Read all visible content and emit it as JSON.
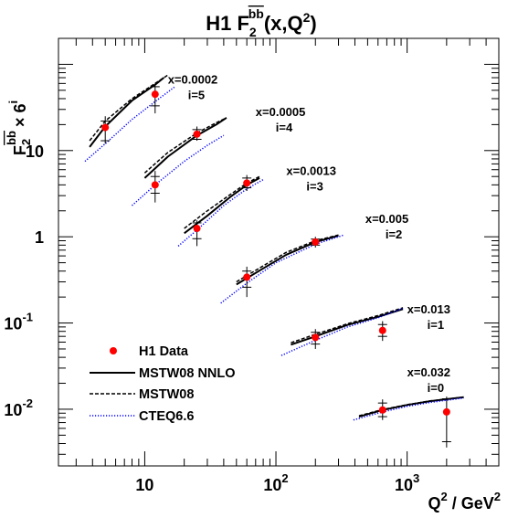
{
  "chart_data": {
    "type": "scatter",
    "title": "H1 F2bb(x,Q2)",
    "title_parts": {
      "main": "H1 F",
      "sub": "2",
      "sup": "bb",
      "args": "(x,Q",
      "arg_sup": "2",
      "close": ")"
    },
    "xlabel": "Q2 / GeV2",
    "xlabel_parts": {
      "q": "Q",
      "q_sup": "2",
      "unit": " / GeV",
      "unit_sup": "2"
    },
    "ylabel": "F2bb × 6i",
    "ylabel_parts": {
      "f": "F",
      "sub": "2",
      "sup": "bb",
      "times": "× 6",
      "exp": "i"
    },
    "x_scale": "log",
    "y_scale": "log",
    "xlim": [
      2.2,
      5000
    ],
    "ylim": [
      0.0022,
      200
    ],
    "x_ticks": [
      {
        "value": 10,
        "base": "10",
        "exp": ""
      },
      {
        "value": 100,
        "base": "10",
        "exp": "2"
      },
      {
        "value": 1000,
        "base": "10",
        "exp": "3"
      }
    ],
    "y_ticks": [
      {
        "value": 0.01,
        "base": "10",
        "exp": "-2"
      },
      {
        "value": 0.1,
        "base": "10",
        "exp": "-1"
      },
      {
        "value": 1,
        "base": "1",
        "exp": ""
      },
      {
        "value": 10,
        "base": "10",
        "exp": ""
      }
    ],
    "bins": [
      {
        "x_label": "x=0.0002",
        "i_label": "i=5",
        "label_q2": 15,
        "label_y": 60
      },
      {
        "x_label": "x=0.0005",
        "i_label": "i=4",
        "label_q2": 70,
        "label_y": 25
      },
      {
        "x_label": "x=0.0013",
        "i_label": "i=3",
        "label_q2": 120,
        "label_y": 5.2
      },
      {
        "x_label": "x=0.005",
        "i_label": "i=2",
        "label_q2": 480,
        "label_y": 1.45
      },
      {
        "x_label": "x=0.013",
        "i_label": "i=1",
        "label_q2": 1000,
        "label_y": 0.13
      },
      {
        "x_label": "x=0.032",
        "i_label": "i=0",
        "label_q2": 1000,
        "label_y": 0.024
      }
    ],
    "series": [
      {
        "name": "H1 Data",
        "kind": "points",
        "color": "#ff0000",
        "points": [
          {
            "q2": 5,
            "y": 18.5,
            "y_lo": 12,
            "y_hi": 25,
            "tick_lo": 13,
            "tick_hi": 22
          },
          {
            "q2": 12,
            "y": 45,
            "y_lo": 27,
            "y_hi": 60,
            "tick_lo": 33,
            "tick_hi": 55
          },
          {
            "q2": 12,
            "y": 4.0,
            "y_lo": 2.5,
            "y_hi": 5.8,
            "tick_lo": 3.2,
            "tick_hi": 5.0
          },
          {
            "q2": 25,
            "y": 15.5,
            "y_lo": 13,
            "y_hi": 19,
            "tick_lo": 13.5,
            "tick_hi": 17.5
          },
          {
            "q2": 25,
            "y": 1.25,
            "y_lo": 0.78,
            "y_hi": 1.55,
            "tick_lo": 0.95,
            "tick_hi": 1.45
          },
          {
            "q2": 60,
            "y": 4.2,
            "y_lo": 3.4,
            "y_hi": 5.2,
            "tick_lo": 3.7,
            "tick_hi": 4.8
          },
          {
            "q2": 60,
            "y": 0.34,
            "y_lo": 0.2,
            "y_hi": 0.45,
            "tick_lo": 0.26,
            "tick_hi": 0.4
          },
          {
            "q2": 200,
            "y": 0.87,
            "y_lo": 0.75,
            "y_hi": 1.0,
            "tick_lo": 0.8,
            "tick_hi": 0.94
          },
          {
            "q2": 200,
            "y": 0.068,
            "y_lo": 0.05,
            "y_hi": 0.085,
            "tick_lo": 0.057,
            "tick_hi": 0.078
          },
          {
            "q2": 650,
            "y": 0.082,
            "y_lo": 0.062,
            "y_hi": 0.105,
            "tick_lo": 0.07,
            "tick_hi": 0.096
          },
          {
            "q2": 650,
            "y": 0.0098,
            "y_lo": 0.0075,
            "y_hi": 0.013,
            "tick_lo": 0.0082,
            "tick_hi": 0.0118
          },
          {
            "q2": 2000,
            "y": 0.0093,
            "y_lo": 0.0036,
            "y_hi": 0.014,
            "tick_lo": 0.0042,
            "tick_hi": 0.0132
          }
        ]
      },
      {
        "name": "MSTW08 NNLO",
        "kind": "line",
        "dash": "solid",
        "color": "#000000",
        "curves": [
          [
            [
              3.8,
              11
            ],
            [
              5,
              19
            ],
            [
              8,
              38
            ],
            [
              12,
              58
            ],
            [
              14,
              70
            ]
          ],
          [
            [
              10,
              4.8
            ],
            [
              15,
              8.5
            ],
            [
              25,
              15
            ],
            [
              35,
              20
            ],
            [
              42,
              24
            ]
          ],
          [
            [
              20,
              1.1
            ],
            [
              30,
              1.75
            ],
            [
              45,
              2.9
            ],
            [
              60,
              4.0
            ],
            [
              75,
              4.8
            ]
          ],
          [
            [
              50,
              0.28
            ],
            [
              80,
              0.43
            ],
            [
              120,
              0.62
            ],
            [
              200,
              0.87
            ],
            [
              300,
              1.03
            ]
          ],
          [
            [
              130,
              0.056
            ],
            [
              200,
              0.07
            ],
            [
              350,
              0.095
            ],
            [
              600,
              0.118
            ],
            [
              930,
              0.145
            ]
          ],
          [
            [
              430,
              0.0082
            ],
            [
              650,
              0.0098
            ],
            [
              1000,
              0.0112
            ],
            [
              1500,
              0.0124
            ],
            [
              2700,
              0.0138
            ]
          ]
        ]
      },
      {
        "name": "MSTW08",
        "kind": "line",
        "dash": "dashed",
        "color": "#000000",
        "curves": [
          [
            [
              3.8,
              13
            ],
            [
              5,
              22
            ],
            [
              8,
              40
            ],
            [
              12,
              60
            ],
            [
              15,
              75
            ]
          ],
          [
            [
              10,
              5.5
            ],
            [
              15,
              9.5
            ],
            [
              25,
              16
            ],
            [
              35,
              21
            ],
            [
              42,
              24
            ]
          ],
          [
            [
              20,
              1.25
            ],
            [
              30,
              2.0
            ],
            [
              45,
              3.1
            ],
            [
              60,
              4.2
            ],
            [
              75,
              5.0
            ]
          ],
          [
            [
              50,
              0.3
            ],
            [
              80,
              0.46
            ],
            [
              120,
              0.66
            ],
            [
              200,
              0.9
            ],
            [
              300,
              1.05
            ]
          ],
          [
            [
              130,
              0.059
            ],
            [
              200,
              0.074
            ],
            [
              350,
              0.098
            ],
            [
              600,
              0.122
            ],
            [
              930,
              0.15
            ]
          ],
          [
            [
              430,
              0.0084
            ],
            [
              650,
              0.0099
            ],
            [
              1000,
              0.0113
            ],
            [
              1500,
              0.0125
            ],
            [
              2700,
              0.0138
            ]
          ]
        ]
      },
      {
        "name": "CTEQ6.6",
        "kind": "line",
        "dash": "dotted",
        "color": "#0000ff",
        "curves": [
          [
            [
              3.5,
              7.5
            ],
            [
              5,
              12
            ],
            [
              8,
              23
            ],
            [
              12,
              37
            ],
            [
              17,
              55
            ]
          ],
          [
            [
              8,
              2.3
            ],
            [
              12,
              4.0
            ],
            [
              20,
              7.5
            ],
            [
              30,
              11.5
            ],
            [
              40,
              15
            ]
          ],
          [
            [
              18,
              0.78
            ],
            [
              25,
              1.2
            ],
            [
              40,
              2.3
            ],
            [
              60,
              3.6
            ],
            [
              80,
              4.6
            ]
          ],
          [
            [
              38,
              0.17
            ],
            [
              60,
              0.29
            ],
            [
              100,
              0.5
            ],
            [
              200,
              0.82
            ],
            [
              330,
              1.05
            ]
          ],
          [
            [
              110,
              0.042
            ],
            [
              200,
              0.063
            ],
            [
              350,
              0.09
            ],
            [
              600,
              0.115
            ],
            [
              930,
              0.148
            ]
          ],
          [
            [
              390,
              0.0075
            ],
            [
              650,
              0.0093
            ],
            [
              1000,
              0.0108
            ],
            [
              1500,
              0.012
            ],
            [
              2700,
              0.0135
            ]
          ]
        ]
      }
    ],
    "legend": {
      "placement": "lower-left",
      "entries": [
        "H1 Data",
        "MSTW08 NNLO",
        "MSTW08",
        "CTEQ6.6"
      ]
    },
    "grid": false
  }
}
